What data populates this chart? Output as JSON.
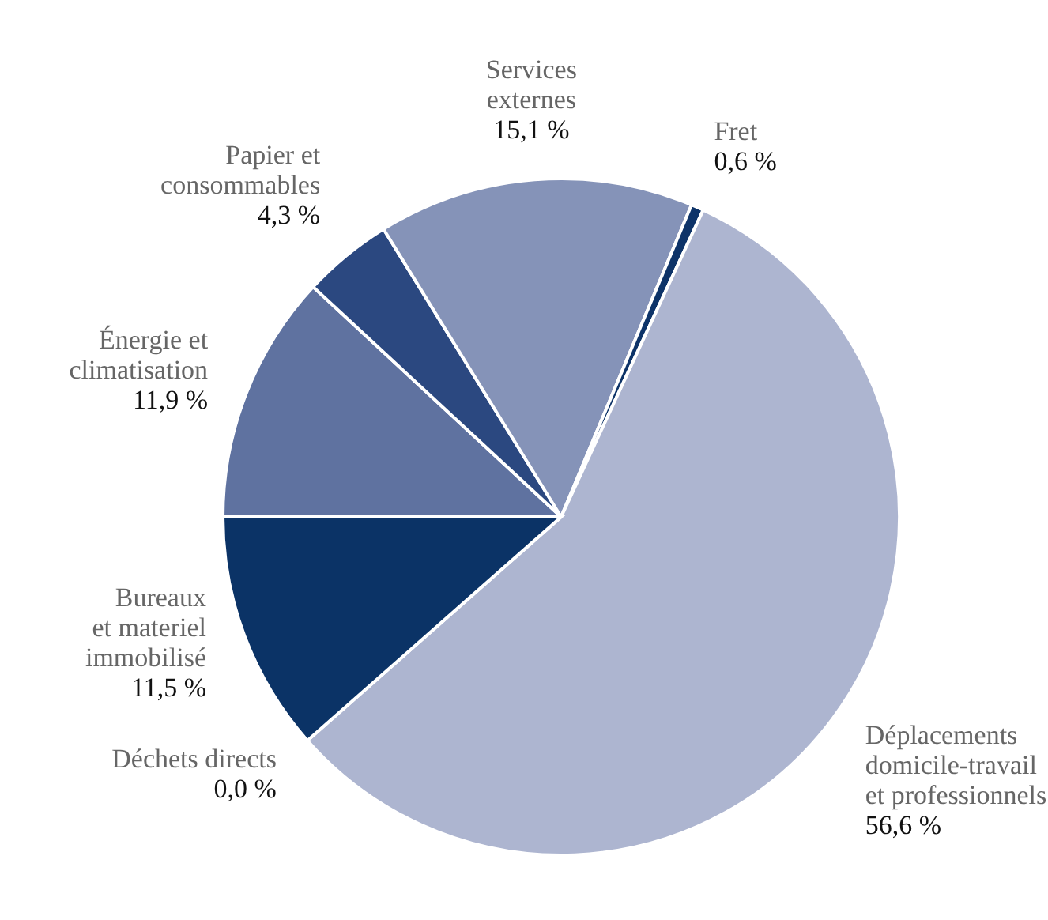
{
  "chart_data": {
    "type": "pie",
    "categories": [
      "Énergie et\nclimatisation",
      "Papier et\nconsommables",
      "Services\nexternes",
      "Fret",
      "Déplacements\ndomicile-travail\net professionnels",
      "Déchets directs",
      "Bureaux\net materiel\nimmobilisé"
    ],
    "values": [
      11.9,
      4.3,
      15.1,
      0.6,
      56.6,
      0.0,
      11.5
    ],
    "colors": [
      "#5f72a0",
      "#2b4880",
      "#8593b8",
      "#0d3368",
      "#adb5d0",
      "#5c6b8f",
      "#0b3366"
    ],
    "value_labels": [
      "11,9 %",
      "4,3 %",
      "15,1 %",
      "0,6 %",
      "56,6 %",
      "0,0 %",
      "11,5 %"
    ]
  }
}
